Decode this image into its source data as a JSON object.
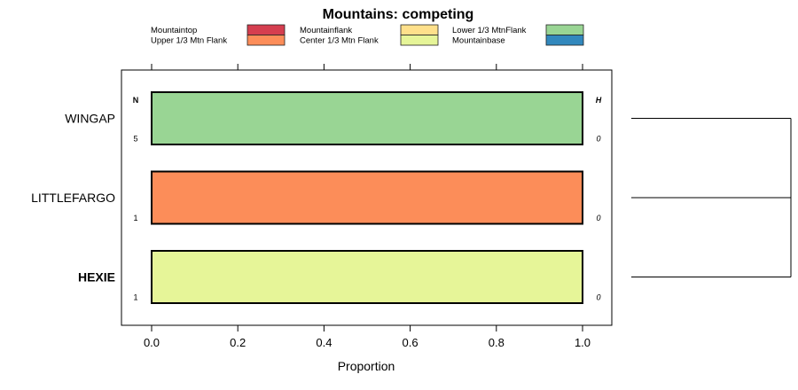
{
  "chart_data": {
    "type": "bar",
    "stacked": true,
    "orientation": "horizontal",
    "title": "Mountains: competing",
    "xlabel": "Proportion",
    "ylabel": "",
    "xlim": [
      0,
      1
    ],
    "x_ticks": [
      "0.0",
      "0.2",
      "0.4",
      "0.6",
      "0.8",
      "1.0"
    ],
    "x_tick_values": [
      0,
      0.2,
      0.4,
      0.6,
      0.8,
      1.0
    ],
    "legend": [
      {
        "label": "Mountaintop",
        "color": "#D53E4F"
      },
      {
        "label": "Upper 1/3 Mtn Flank",
        "color": "#FC8D59"
      },
      {
        "label": "Mountainflank",
        "color": "#FEE08B"
      },
      {
        "label": "Center 1/3 Mtn Flank",
        "color": "#E6F598"
      },
      {
        "label": "Lower 1/3 MtnFlank",
        "color": "#99D594"
      },
      {
        "label": "Mountainbase",
        "color": "#3288BD"
      }
    ],
    "legend_placement": "top",
    "n_header": "N",
    "h_header": "H",
    "categories": [
      {
        "label": "WINGAP",
        "bold": false,
        "n": "5",
        "h": "0",
        "segments": [
          {
            "category": "Lower 1/3 MtnFlank",
            "value": 1.0
          }
        ]
      },
      {
        "label": "LITTLEFARGO",
        "bold": false,
        "n": "1",
        "h": "0",
        "segments": [
          {
            "category": "Upper 1/3 Mtn Flank",
            "value": 1.0
          }
        ]
      },
      {
        "label": "HEXIE",
        "bold": true,
        "n": "1",
        "h": "0",
        "segments": [
          {
            "category": "Center 1/3 Mtn Flank",
            "value": 1.0
          }
        ]
      }
    ],
    "dendrogram": true
  }
}
